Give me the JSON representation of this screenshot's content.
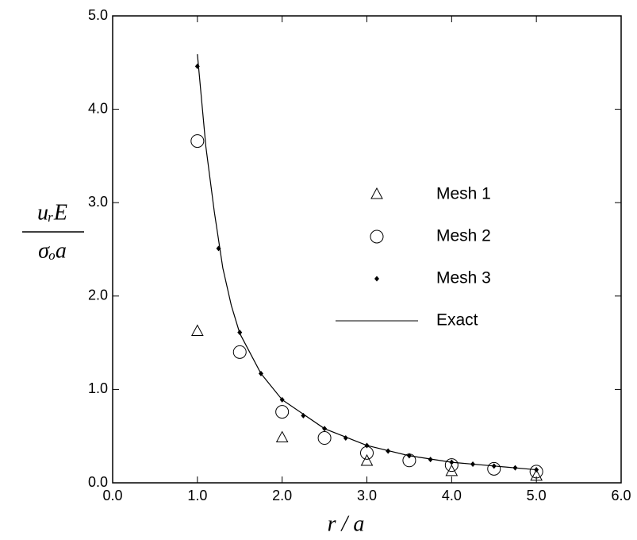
{
  "chart_data": {
    "type": "scatter",
    "xlabel": "r / a",
    "ylabel_numerator": "uᵣE",
    "ylabel_denominator": "σₒa",
    "xlim": [
      0,
      6
    ],
    "ylim": [
      0,
      5
    ],
    "xticks": [
      {
        "value": 0,
        "label": "0.0"
      },
      {
        "value": 1,
        "label": "1.0"
      },
      {
        "value": 2,
        "label": "2.0"
      },
      {
        "value": 3,
        "label": "3.0"
      },
      {
        "value": 4,
        "label": "4.0"
      },
      {
        "value": 5,
        "label": "5.0"
      },
      {
        "value": 6,
        "label": "6.0"
      }
    ],
    "yticks": [
      {
        "value": 0,
        "label": "0.0"
      },
      {
        "value": 1,
        "label": "1.0"
      },
      {
        "value": 2,
        "label": "2.0"
      },
      {
        "value": 3,
        "label": "3.0"
      },
      {
        "value": 4,
        "label": "4.0"
      },
      {
        "value": 5,
        "label": "5.0"
      }
    ],
    "legend": "right",
    "series": [
      {
        "name": "Mesh 1",
        "marker": "triangle",
        "color": "#000000",
        "x": [
          1,
          2,
          3,
          4,
          5
        ],
        "values": [
          1.62,
          0.48,
          0.23,
          0.12,
          0.07
        ]
      },
      {
        "name": "Mesh 2",
        "marker": "circle",
        "color": "#000000",
        "x": [
          1,
          1.5,
          2,
          2.5,
          3,
          3.5,
          4,
          4.5,
          5
        ],
        "values": [
          3.66,
          1.4,
          0.76,
          0.48,
          0.32,
          0.24,
          0.19,
          0.15,
          0.12
        ]
      },
      {
        "name": "Mesh 3",
        "marker": "diamond",
        "color": "#000000",
        "x": [
          1,
          1.25,
          1.5,
          1.75,
          2,
          2.25,
          2.5,
          2.75,
          3,
          3.25,
          3.5,
          3.75,
          4,
          4.25,
          4.5,
          4.75,
          5
        ],
        "values": [
          4.46,
          2.51,
          1.61,
          1.17,
          0.89,
          0.72,
          0.58,
          0.48,
          0.4,
          0.34,
          0.29,
          0.25,
          0.22,
          0.2,
          0.18,
          0.16,
          0.14
        ]
      },
      {
        "name": "Exact",
        "marker": "line",
        "color": "#000000",
        "x": [
          1,
          1.1,
          1.2,
          1.3,
          1.4,
          1.5,
          1.75,
          2,
          2.5,
          3,
          3.5,
          4,
          4.5,
          5
        ],
        "values": [
          4.59,
          3.6,
          2.9,
          2.3,
          1.9,
          1.6,
          1.17,
          0.89,
          0.58,
          0.4,
          0.29,
          0.22,
          0.18,
          0.14
        ]
      }
    ]
  }
}
